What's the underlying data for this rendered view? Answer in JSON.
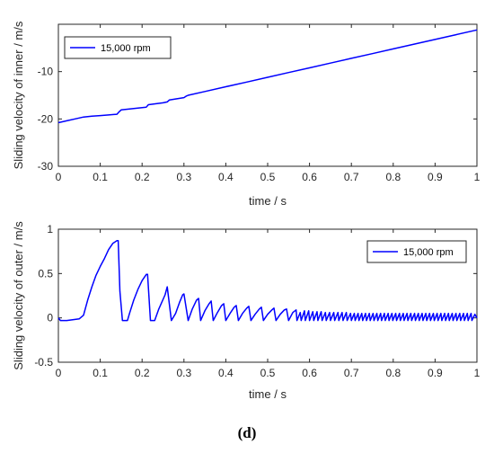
{
  "caption": "(d)",
  "chart_data": [
    {
      "type": "line",
      "xlabel": "time / s",
      "ylabel": "Sliding velocity of inner / m/s",
      "xlim": [
        0,
        1
      ],
      "ylim": [
        -30,
        0
      ],
      "xticks": [
        0,
        0.1,
        0.2,
        0.3,
        0.4,
        0.5,
        0.6,
        0.7,
        0.8,
        0.9,
        1
      ],
      "xtick_labels": [
        "0",
        "0.1",
        "0.2",
        "0.3",
        "0.4",
        "0.5",
        "0.6",
        "0.7",
        "0.8",
        "0.9",
        "1"
      ],
      "yticks": [
        -30,
        -20,
        -10
      ],
      "ytick_labels": [
        "-30",
        "-20",
        "-10"
      ],
      "legend_position": "top-left",
      "grid": false,
      "series": [
        {
          "name": "15,000 rpm",
          "color": "#0000ff",
          "x": [
            0,
            0.02,
            0.04,
            0.06,
            0.08,
            0.1,
            0.12,
            0.14,
            0.145,
            0.15,
            0.2,
            0.21,
            0.215,
            0.25,
            0.26,
            0.265,
            0.3,
            0.305,
            0.31,
            0.35,
            0.4,
            0.45,
            0.5,
            0.55,
            0.6,
            0.65,
            0.7,
            0.75,
            0.8,
            0.85,
            0.9,
            0.95,
            1
          ],
          "values": [
            -20.8,
            -20.4,
            -20.0,
            -19.6,
            -19.4,
            -19.3,
            -19.15,
            -19.0,
            -18.5,
            -18.1,
            -17.6,
            -17.5,
            -17.0,
            -16.6,
            -16.4,
            -16.0,
            -15.5,
            -15.2,
            -15.0,
            -14.2,
            -13.2,
            -12.2,
            -11.2,
            -10.2,
            -9.2,
            -8.2,
            -7.2,
            -6.2,
            -5.2,
            -4.2,
            -3.2,
            -2.2,
            -1.2
          ]
        }
      ]
    },
    {
      "type": "line",
      "xlabel": "time / s",
      "ylabel": "Sliding velocity of outer / m/s",
      "xlim": [
        0,
        1
      ],
      "ylim": [
        -0.5,
        1
      ],
      "xticks": [
        0,
        0.1,
        0.2,
        0.3,
        0.4,
        0.5,
        0.6,
        0.7,
        0.8,
        0.9,
        1
      ],
      "xtick_labels": [
        "0",
        "0.1",
        "0.2",
        "0.3",
        "0.4",
        "0.5",
        "0.6",
        "0.7",
        "0.8",
        "0.9",
        "1"
      ],
      "yticks": [
        -0.5,
        0,
        0.5,
        1
      ],
      "ytick_labels": [
        "-0.5",
        "0",
        "0.5",
        "1"
      ],
      "legend_position": "top-right",
      "grid": false,
      "series": [
        {
          "name": "15,000 rpm",
          "color": "#0000ff",
          "x": [
            0,
            0.005,
            0.02,
            0.05,
            0.06,
            0.07,
            0.08,
            0.09,
            0.1,
            0.11,
            0.12,
            0.13,
            0.14,
            0.143,
            0.147,
            0.153,
            0.165,
            0.17,
            0.18,
            0.19,
            0.2,
            0.21,
            0.213,
            0.22,
            0.23,
            0.24,
            0.255,
            0.26,
            0.27,
            0.28,
            0.29,
            0.297,
            0.3,
            0.31,
            0.32,
            0.33,
            0.335,
            0.34,
            0.35,
            0.36,
            0.365,
            0.37,
            0.38,
            0.39,
            0.395,
            0.4,
            0.41,
            0.42,
            0.425,
            0.43,
            0.44,
            0.45,
            0.455,
            0.46,
            0.47,
            0.48,
            0.485,
            0.49,
            0.5,
            0.51,
            0.515,
            0.52,
            0.53,
            0.54,
            0.545,
            0.55,
            0.56,
            0.568,
            0.57,
            0.578,
            0.58,
            0.588,
            0.59,
            0.598,
            0.6,
            0.608,
            0.61,
            0.618,
            0.62,
            0.628,
            0.63,
            0.638,
            0.64,
            0.648,
            0.65,
            0.658,
            0.66,
            0.668,
            0.67,
            0.678,
            0.68,
            0.688,
            0.69,
            0.698,
            0.7,
            0.707,
            0.709,
            0.716,
            0.718,
            0.725,
            0.727,
            0.734,
            0.736,
            0.743,
            0.745,
            0.752,
            0.754,
            0.761,
            0.763,
            0.77,
            0.772,
            0.779,
            0.781,
            0.788,
            0.79,
            0.797,
            0.799,
            0.806,
            0.808,
            0.815,
            0.817,
            0.824,
            0.826,
            0.833,
            0.835,
            0.842,
            0.844,
            0.851,
            0.853,
            0.86,
            0.862,
            0.869,
            0.871,
            0.878,
            0.88,
            0.887,
            0.889,
            0.896,
            0.898,
            0.905,
            0.907,
            0.914,
            0.916,
            0.923,
            0.925,
            0.932,
            0.934,
            0.941,
            0.943,
            0.95,
            0.952,
            0.959,
            0.961,
            0.968,
            0.97,
            0.977,
            0.979,
            0.986,
            0.988,
            0.995,
            1
          ],
          "values": [
            0,
            -0.03,
            -0.03,
            -0.01,
            0.03,
            0.2,
            0.35,
            0.48,
            0.58,
            0.67,
            0.77,
            0.84,
            0.87,
            0.87,
            0.3,
            -0.03,
            -0.03,
            0.05,
            0.2,
            0.32,
            0.42,
            0.49,
            0.49,
            -0.03,
            -0.03,
            0.1,
            0.26,
            0.35,
            -0.03,
            0.05,
            0.18,
            0.26,
            0.27,
            -0.03,
            0.1,
            0.2,
            0.22,
            -0.03,
            0.08,
            0.16,
            0.19,
            -0.03,
            0.06,
            0.14,
            0.16,
            -0.03,
            0.05,
            0.12,
            0.14,
            -0.03,
            0.05,
            0.11,
            0.13,
            -0.03,
            0.04,
            0.1,
            0.12,
            -0.03,
            0.04,
            0.09,
            0.11,
            -0.03,
            0.04,
            0.09,
            0.1,
            -0.03,
            0.06,
            0.09,
            -0.03,
            0.06,
            -0.03,
            0.08,
            -0.03,
            0.08,
            -0.03,
            0.07,
            -0.03,
            0.07,
            -0.03,
            0.07,
            -0.03,
            0.06,
            -0.03,
            0.06,
            -0.03,
            0.06,
            -0.03,
            0.06,
            -0.03,
            0.06,
            -0.03,
            0.06,
            -0.03,
            0.05,
            -0.03,
            0.05,
            -0.03,
            0.05,
            -0.03,
            0.05,
            -0.03,
            0.05,
            -0.03,
            0.05,
            -0.03,
            0.05,
            -0.03,
            0.05,
            -0.03,
            0.05,
            -0.03,
            0.05,
            -0.03,
            0.05,
            -0.03,
            0.05,
            -0.03,
            0.05,
            -0.03,
            0.05,
            -0.03,
            0.05,
            -0.03,
            0.05,
            -0.03,
            0.05,
            -0.03,
            0.05,
            -0.03,
            0.05,
            -0.03,
            0.05,
            -0.03,
            0.05,
            -0.03,
            0.05,
            -0.03,
            0.05,
            -0.03,
            0.05,
            -0.03,
            0.05,
            -0.03,
            0.05,
            -0.03,
            0.05,
            -0.03,
            0.05,
            -0.03,
            0.05,
            -0.03,
            0.05,
            -0.03,
            0.05,
            -0.03,
            0.05,
            -0.03,
            0.05,
            -0.03,
            0.04,
            0.0
          ]
        }
      ]
    }
  ]
}
